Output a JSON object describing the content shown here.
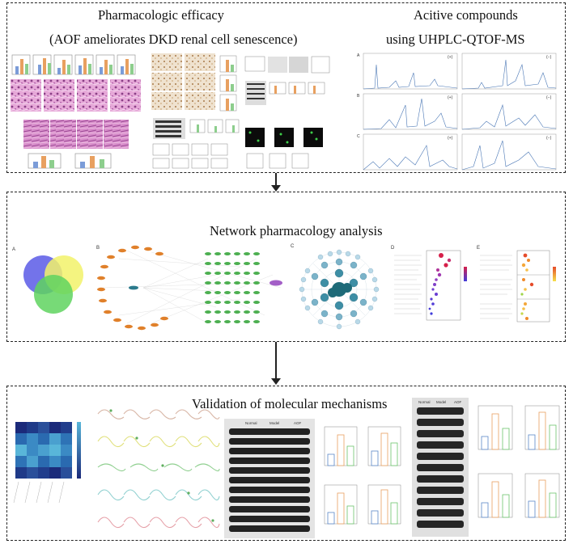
{
  "sections": {
    "efficacy": {
      "title_line1": "Pharmacologic efficacy",
      "title_line2": "(AOF ameliorates DKD renal cell senescence)"
    },
    "compounds": {
      "title_line1": "Acitive compounds",
      "title_line2": "using UHPLC-QTOF-MS"
    },
    "network": {
      "title": "Network pharmacology analysis"
    },
    "validation": {
      "title": "Validation of molecular mechanisms"
    }
  },
  "panel_letters": {
    "A": "A",
    "B": "B",
    "C": "C",
    "D": "D",
    "E": "E"
  },
  "chromatogram_modes": {
    "pos": "(+)",
    "neg": "(−)"
  },
  "western_groups": [
    "Normal",
    "Model",
    "AOF"
  ],
  "colors": {
    "frame": "#222222",
    "he_stain": "#c97bb8",
    "ihc": "#d9c2a0",
    "network_orange": "#e0802a",
    "network_green": "#4caf50",
    "network_teal": "#2b7a8c",
    "venn_blue": "#5a5ae6",
    "venn_yellow": "#f2f26a",
    "venn_green": "#5fd45f",
    "heatmap_dark": "#1b2a7a",
    "heatmap_light": "#59b6d9"
  }
}
